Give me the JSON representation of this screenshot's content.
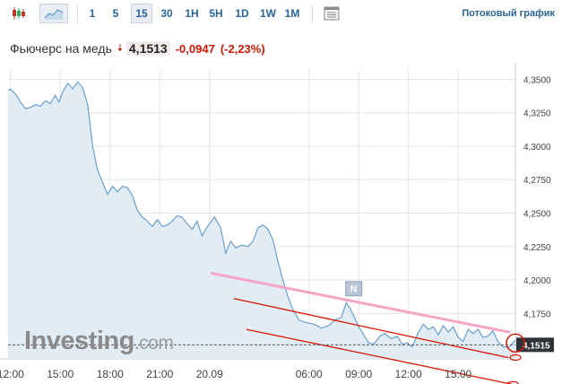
{
  "toolbar": {
    "chart_type_icons": [
      "candlestick-icon",
      "area-chart-icon"
    ],
    "intervals": [
      "1",
      "5",
      "15",
      "30",
      "1H",
      "5H",
      "1D",
      "1W",
      "1M"
    ],
    "selected_interval": "15",
    "settings_icon": "table-settings-icon",
    "streaming_label": "Потоковый график"
  },
  "quote": {
    "name": "Фьючерс на медь",
    "price": "4,1513",
    "change": "-0,0947",
    "change_pct": "(-2,23%)",
    "direction": "down"
  },
  "watermark": {
    "brand": "Investing",
    "suffix": ".com"
  },
  "chart_data": {
    "type": "area",
    "y_ticks": [
      "4,3500",
      "4,3250",
      "4,3000",
      "4,2750",
      "4,2500",
      "4,2250",
      "4,2000",
      "4,1750"
    ],
    "ylim": [
      4.141,
      4.357
    ],
    "x_ticks": [
      "12:00",
      "15:00",
      "18:00",
      "21:00",
      "20.09",
      "06:00",
      "09:00",
      "12:00",
      "15:00"
    ],
    "x_tick_positions": [
      0,
      2,
      4,
      6,
      8,
      12,
      14,
      16,
      18
    ],
    "xlim": [
      -0.1,
      20.3
    ],
    "current_value_label": "4,1515",
    "current_value": 4.1515,
    "marker_label": "N",
    "series": [
      {
        "values": [
          [
            -0.1,
            4.342
          ],
          [
            0.0,
            4.3425
          ],
          [
            0.2,
            4.339
          ],
          [
            0.4,
            4.333
          ],
          [
            0.6,
            4.328
          ],
          [
            0.8,
            4.329
          ],
          [
            1.0,
            4.331
          ],
          [
            1.2,
            4.33
          ],
          [
            1.4,
            4.334
          ],
          [
            1.6,
            4.332
          ],
          [
            1.8,
            4.338
          ],
          [
            1.95,
            4.333
          ],
          [
            2.1,
            4.341
          ],
          [
            2.3,
            4.347
          ],
          [
            2.5,
            4.343
          ],
          [
            2.7,
            4.348
          ],
          [
            2.9,
            4.344
          ],
          [
            3.1,
            4.331
          ],
          [
            3.3,
            4.3
          ],
          [
            3.5,
            4.282
          ],
          [
            3.7,
            4.273
          ],
          [
            3.9,
            4.264
          ],
          [
            4.1,
            4.27
          ],
          [
            4.3,
            4.266
          ],
          [
            4.5,
            4.27
          ],
          [
            4.7,
            4.269
          ],
          [
            4.9,
            4.263
          ],
          [
            5.1,
            4.252
          ],
          [
            5.3,
            4.247
          ],
          [
            5.5,
            4.244
          ],
          [
            5.7,
            4.24
          ],
          [
            5.9,
            4.245
          ],
          [
            6.1,
            4.24
          ],
          [
            6.3,
            4.241
          ],
          [
            6.5,
            4.244
          ],
          [
            6.7,
            4.248
          ],
          [
            6.9,
            4.247
          ],
          [
            7.1,
            4.242
          ],
          [
            7.3,
            4.238
          ],
          [
            7.5,
            4.244
          ],
          [
            7.7,
            4.233
          ],
          [
            7.85,
            4.238
          ],
          [
            8.0,
            4.242
          ],
          [
            8.2,
            4.247
          ],
          [
            8.45,
            4.239
          ],
          [
            8.65,
            4.22
          ],
          [
            8.85,
            4.229
          ],
          [
            9.05,
            4.224
          ],
          [
            9.3,
            4.226
          ],
          [
            9.55,
            4.225
          ],
          [
            9.75,
            4.229
          ],
          [
            9.95,
            4.239
          ],
          [
            10.15,
            4.241
          ],
          [
            10.35,
            4.238
          ],
          [
            10.55,
            4.23
          ],
          [
            10.75,
            4.214
          ],
          [
            10.95,
            4.2
          ],
          [
            11.15,
            4.188
          ],
          [
            11.35,
            4.178
          ],
          [
            11.6,
            4.17
          ],
          [
            11.9,
            4.168
          ],
          [
            12.2,
            4.167
          ],
          [
            12.5,
            4.164
          ],
          [
            12.8,
            4.166
          ],
          [
            13.05,
            4.17
          ],
          [
            13.3,
            4.172
          ],
          [
            13.5,
            4.183
          ],
          [
            13.65,
            4.179
          ],
          [
            13.8,
            4.173
          ],
          [
            14.0,
            4.165
          ],
          [
            14.2,
            4.159
          ],
          [
            14.4,
            4.153
          ],
          [
            14.6,
            4.152
          ],
          [
            14.85,
            4.158
          ],
          [
            15.05,
            4.16
          ],
          [
            15.3,
            4.156
          ],
          [
            15.55,
            4.158
          ],
          [
            15.75,
            4.152
          ],
          [
            15.95,
            4.153
          ],
          [
            16.15,
            4.15
          ],
          [
            16.4,
            4.161
          ],
          [
            16.6,
            4.167
          ],
          [
            16.8,
            4.163
          ],
          [
            17.0,
            4.165
          ],
          [
            17.2,
            4.159
          ],
          [
            17.4,
            4.166
          ],
          [
            17.6,
            4.161
          ],
          [
            17.8,
            4.165
          ],
          [
            18.0,
            4.157
          ],
          [
            18.2,
            4.154
          ],
          [
            18.4,
            4.163
          ],
          [
            18.6,
            4.16
          ],
          [
            18.8,
            4.163
          ],
          [
            19.0,
            4.157
          ],
          [
            19.2,
            4.158
          ],
          [
            19.4,
            4.162
          ],
          [
            19.6,
            4.154
          ],
          [
            19.8,
            4.15
          ],
          [
            20.05,
            4.15
          ],
          [
            20.3,
            4.155
          ]
        ]
      }
    ],
    "drawings": [
      {
        "name": "pink-trendline",
        "color": "#f4a6c4",
        "points": [
          [
            8.1,
            4.205
          ],
          [
            20.05,
            4.161
          ]
        ]
      },
      {
        "name": "red-channel-upper",
        "color": "#d91400",
        "points": [
          [
            9.0,
            4.186
          ],
          [
            20.0,
            4.142
          ]
        ]
      },
      {
        "name": "red-channel-lower",
        "color": "#d91400",
        "points": [
          [
            9.5,
            4.163
          ],
          [
            20.3,
            4.1215
          ]
        ]
      }
    ],
    "grid": true,
    "ylabel_side": "right"
  },
  "colors": {
    "line": "#6aa0cc",
    "area": "#e1ecf5",
    "down": "#d91400",
    "link": "#2a6496",
    "grid": "#e2e6ea"
  }
}
